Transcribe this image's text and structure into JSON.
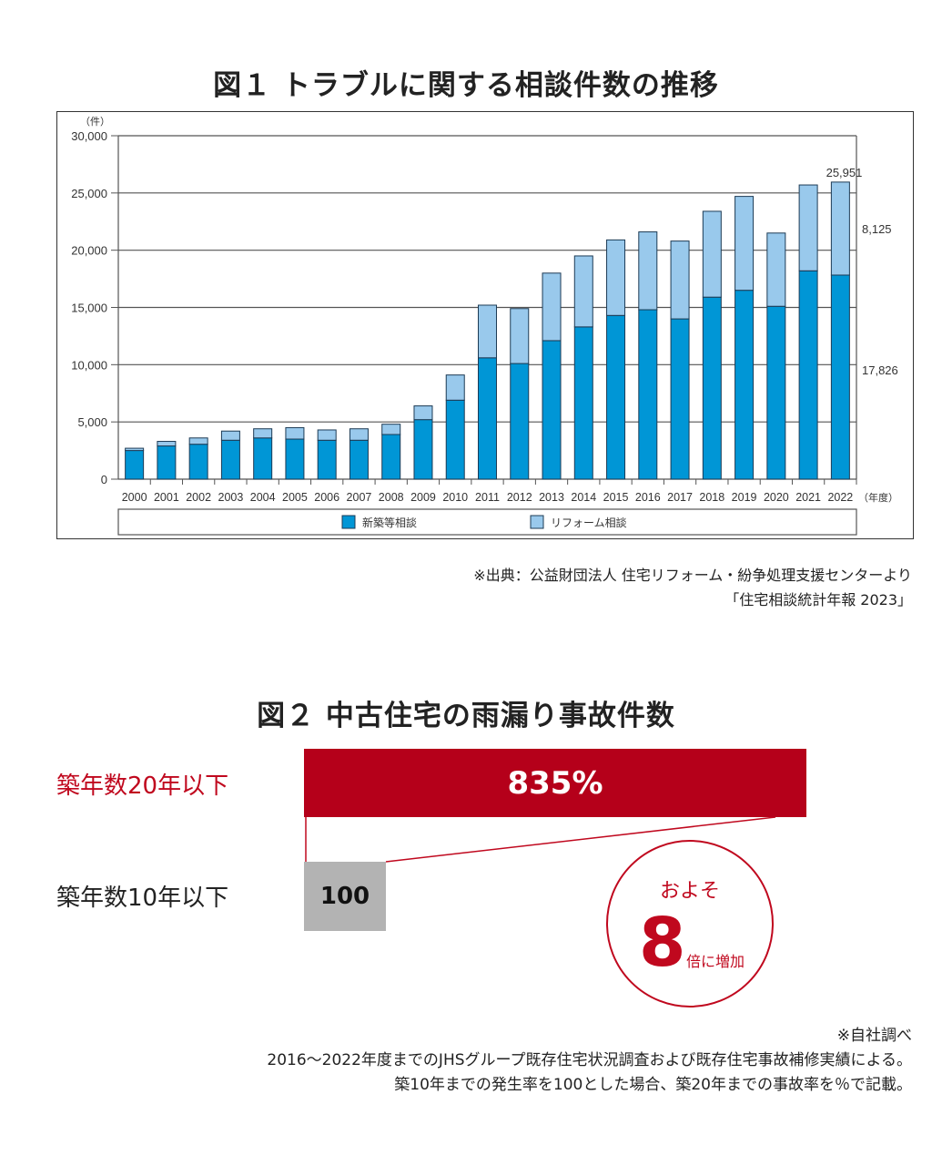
{
  "figure1": {
    "title": "図１ トラブルに関する相談件数の推移",
    "source_lines": [
      "※出典：公益財団法人 住宅リフォーム・紛争処理支援センターより",
      "「住宅相談統計年報 2023」"
    ]
  },
  "figure2": {
    "title": "図２ 中古住宅の雨漏り事故件数",
    "rows": [
      {
        "label": "築年数20年以下",
        "value_label": "835%"
      },
      {
        "label": "築年数10年以下",
        "value_label": "100"
      }
    ],
    "callout": {
      "approx": "およそ",
      "multiple": "8",
      "suffix": "倍に増加"
    },
    "notes": [
      "※自社調べ",
      "2016～2022年度までのJHSグループ既存住宅状況調査および既存住宅事故補修実績による。",
      "築10年までの発生率を100とした場合、築20年までの事故率を％で記載。"
    ],
    "colors": {
      "accent": "#b5001a",
      "base": "#b3b3b3"
    }
  },
  "chart_data": [
    {
      "type": "bar",
      "stacked": true,
      "title": "図１ トラブルに関する相談件数の推移",
      "ylabel": "（件）",
      "xlabel": "（年度）",
      "ylim": [
        0,
        30000
      ],
      "yticks": [
        "0",
        "5,000",
        "10,000",
        "15,000",
        "20,000",
        "25,000",
        "30,000"
      ],
      "grid": true,
      "legend": "bottom",
      "categories": [
        "2000",
        "2001",
        "2002",
        "2003",
        "2004",
        "2005",
        "2006",
        "2007",
        "2008",
        "2009",
        "2010",
        "2011",
        "2012",
        "2013",
        "2014",
        "2015",
        "2016",
        "2017",
        "2018",
        "2019",
        "2020",
        "2021",
        "2022"
      ],
      "series": [
        {
          "name": "新築等相談",
          "color": "#0096d6",
          "values": [
            2500,
            2900,
            3050,
            3400,
            3600,
            3500,
            3400,
            3400,
            3900,
            5200,
            6900,
            10600,
            10100,
            12100,
            13300,
            14300,
            14800,
            14000,
            15900,
            16500,
            15100,
            18200,
            17826
          ]
        },
        {
          "name": "リフォーム相談",
          "color": "#99c9ec",
          "values": [
            200,
            400,
            550,
            800,
            800,
            1000,
            900,
            1000,
            900,
            1200,
            2200,
            4600,
            4800,
            5900,
            6200,
            6600,
            6800,
            6800,
            7500,
            8200,
            6400,
            7500,
            8125
          ]
        }
      ],
      "annotations": [
        "25,951",
        "8,125",
        "17,826"
      ]
    },
    {
      "type": "bar",
      "orientation": "horizontal",
      "title": "図２ 中古住宅の雨漏り事故件数",
      "categories": [
        "築年数20年以下",
        "築年数10年以下"
      ],
      "values": [
        835,
        100
      ],
      "data_labels": [
        "835%",
        "100"
      ]
    }
  ]
}
